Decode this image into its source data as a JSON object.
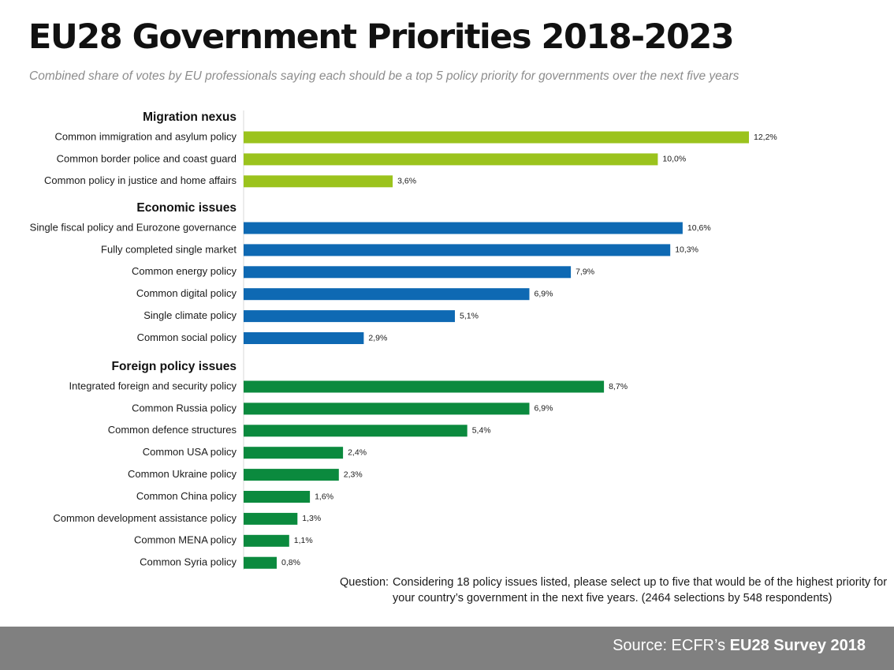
{
  "title": "EU28 Government Priorities 2018-2023",
  "subtitle": "Combined share of votes by EU professionals saying each should be a top 5 policy priority for governments over the next five years",
  "question_label": "Question:",
  "question_text": "Considering 18 policy issues listed, please select up to five that would be of the highest priority for your country’s government in the next five years. (2464 selections by 548 respondents)",
  "source_prefix": "Source: ECFR’s",
  "source_bold": "EU28 Survey 2018",
  "chart_data": {
    "type": "bar",
    "orientation": "horizontal",
    "unit": "%",
    "xlim": [
      0,
      12.2
    ],
    "groups": [
      {
        "name": "Migration nexus",
        "color": "#9bc31d",
        "items": [
          {
            "label": "Common immigration and asylum policy",
            "value": 12.2,
            "value_label": "12,2%"
          },
          {
            "label": "Common border police and coast guard",
            "value": 10.0,
            "value_label": "10,0%"
          },
          {
            "label": "Common policy in justice and home affairs",
            "value": 3.6,
            "value_label": "3,6%"
          }
        ]
      },
      {
        "name": "Economic issues",
        "color": "#0e69b3",
        "items": [
          {
            "label": "Single fiscal policy and Eurozone governance",
            "value": 10.6,
            "value_label": "10,6%"
          },
          {
            "label": "Fully completed single market",
            "value": 10.3,
            "value_label": "10,3%"
          },
          {
            "label": "Common energy policy",
            "value": 7.9,
            "value_label": "7,9%"
          },
          {
            "label": "Common digital policy",
            "value": 6.9,
            "value_label": "6,9%"
          },
          {
            "label": "Single climate policy",
            "value": 5.1,
            "value_label": "5,1%"
          },
          {
            "label": "Common social policy",
            "value": 2.9,
            "value_label": "2,9%"
          }
        ]
      },
      {
        "name": "Foreign policy issues",
        "color": "#0b8a3e",
        "items": [
          {
            "label": "Integrated foreign and security policy",
            "value": 8.7,
            "value_label": "8,7%"
          },
          {
            "label": "Common Russia policy",
            "value": 6.9,
            "value_label": "6,9%"
          },
          {
            "label": "Common defence structures",
            "value": 5.4,
            "value_label": "5,4%"
          },
          {
            "label": "Common USA policy",
            "value": 2.4,
            "value_label": "2,4%"
          },
          {
            "label": "Common Ukraine policy",
            "value": 2.3,
            "value_label": "2,3%"
          },
          {
            "label": "Common China policy",
            "value": 1.6,
            "value_label": "1,6%"
          },
          {
            "label": "Common development assistance policy",
            "value": 1.3,
            "value_label": "1,3%"
          },
          {
            "label": "Common MENA policy",
            "value": 1.1,
            "value_label": "1,1%"
          },
          {
            "label": "Common Syria policy",
            "value": 0.8,
            "value_label": "0,8%"
          }
        ]
      }
    ]
  }
}
